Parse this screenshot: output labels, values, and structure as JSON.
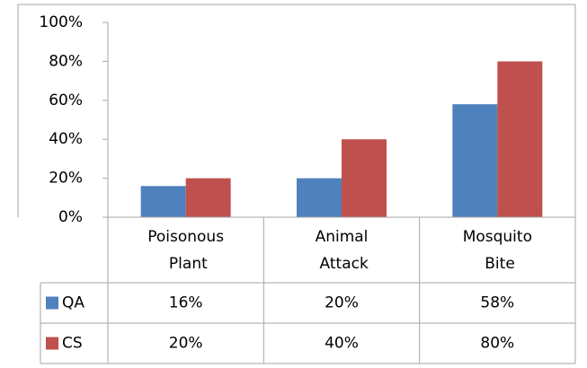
{
  "chart_data": {
    "type": "bar",
    "categories": [
      "Poisonous Plant",
      "Animal Attack",
      "Mosquito Bite"
    ],
    "series": [
      {
        "name": "QA",
        "color": "#4f81bd",
        "values": [
          16,
          20,
          58
        ],
        "value_labels": [
          "16%",
          "20%",
          "58%"
        ]
      },
      {
        "name": "CS",
        "color": "#c0504d",
        "values": [
          20,
          40,
          80
        ],
        "value_labels": [
          "20%",
          "40%",
          "80%"
        ]
      }
    ],
    "ylim": [
      0,
      100
    ],
    "yticks": [
      {
        "value": 0,
        "label": "0%"
      },
      {
        "value": 20,
        "label": "20%"
      },
      {
        "value": 40,
        "label": "40%"
      },
      {
        "value": 60,
        "label": "60%"
      },
      {
        "value": 80,
        "label": "80%"
      },
      {
        "value": 100,
        "label": "100%"
      }
    ],
    "grid": false
  }
}
